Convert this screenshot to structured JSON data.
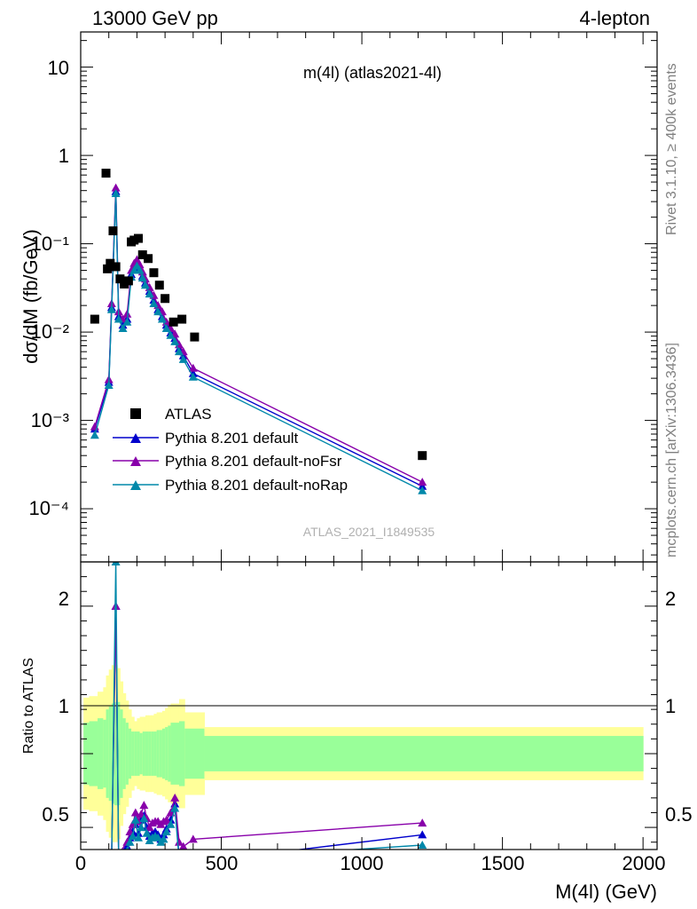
{
  "header": {
    "left": "13000 GeV pp",
    "right": "4-lepton"
  },
  "side_labels": {
    "rivet": "Rivet 3.1.10, ≥ 400k events",
    "mcplots": "mcplots.cern.ch [arXiv:1306.3436]"
  },
  "chart_data": {
    "type": "scatter",
    "title": "m(4l) (atlas2021-4l)",
    "watermark": "ATLAS_2021_I1849535",
    "xlabel": "M(4l) (GeV)",
    "ylabel": "dσ/dM (fb/GeV)",
    "ratio_ylabel": "Ratio to ATLAS",
    "xlim": [
      0,
      2050
    ],
    "ylim": [
      2.5e-05,
      25
    ],
    "yscale": "log",
    "ratio_ylim": [
      0.35,
      2.3
    ],
    "x_ticks": [
      "0",
      "500",
      "1000",
      "1500",
      "2000"
    ],
    "y_ticks": [
      "10⁻⁴",
      "10⁻³",
      "10⁻²",
      "10⁻¹",
      "1",
      "10"
    ],
    "ratio_ticks": [
      "0.5",
      "1",
      "2"
    ],
    "legend_position": "bottom-left",
    "data_series": {
      "name": "ATLAS",
      "color": "#000000",
      "points": [
        [
          50,
          0.014
        ],
        [
          90,
          0.63
        ],
        [
          95,
          0.052
        ],
        [
          105,
          0.06
        ],
        [
          115,
          0.14
        ],
        [
          125,
          0.055
        ],
        [
          140,
          0.04
        ],
        [
          155,
          0.035
        ],
        [
          170,
          0.038
        ],
        [
          180,
          0.105
        ],
        [
          190,
          0.11
        ],
        [
          205,
          0.115
        ],
        [
          220,
          0.075
        ],
        [
          240,
          0.068
        ],
        [
          260,
          0.047
        ],
        [
          280,
          0.034
        ],
        [
          300,
          0.024
        ],
        [
          330,
          0.013
        ],
        [
          360,
          0.014
        ],
        [
          405,
          0.0088
        ],
        [
          1215,
          0.0004
        ]
      ]
    },
    "bands": {
      "inner_color": "#99ff99",
      "outer_color": "#ffff99",
      "edges": [
        10,
        30,
        60,
        80,
        90,
        100,
        110,
        120,
        130,
        140,
        150,
        160,
        170,
        180,
        190,
        200,
        210,
        220,
        230,
        240,
        250,
        260,
        270,
        280,
        290,
        300,
        310,
        320,
        350,
        370,
        440,
        2000
      ],
      "inner_half": [
        0.21,
        0.22,
        0.24,
        0.23,
        0.3,
        0.32,
        0.34,
        0.35,
        0.35,
        0.3,
        0.24,
        0.21,
        0.17,
        0.15,
        0.15,
        0.15,
        0.14,
        0.15,
        0.15,
        0.15,
        0.15,
        0.15,
        0.16,
        0.16,
        0.17,
        0.18,
        0.19,
        0.21,
        0.22,
        0.17,
        0.12
      ],
      "outer_half": [
        0.38,
        0.39,
        0.42,
        0.45,
        0.53,
        0.57,
        0.6,
        0.6,
        0.58,
        0.49,
        0.41,
        0.36,
        0.3,
        0.25,
        0.22,
        0.24,
        0.25,
        0.25,
        0.26,
        0.26,
        0.26,
        0.27,
        0.28,
        0.28,
        0.29,
        0.31,
        0.33,
        0.34,
        0.37,
        0.28,
        0.18
      ]
    },
    "series": [
      {
        "name": "Pythia 8.201 default",
        "color": "#0000cc",
        "points": [
          [
            50,
            0.0008
          ],
          [
            100,
            0.0027
          ],
          [
            110,
            0.019
          ],
          [
            125,
            0.39
          ],
          [
            135,
            0.015
          ],
          [
            150,
            0.012
          ],
          [
            165,
            0.014
          ],
          [
            180,
            0.045
          ],
          [
            190,
            0.054
          ],
          [
            200,
            0.06
          ],
          [
            210,
            0.052
          ],
          [
            220,
            0.043
          ],
          [
            230,
            0.036
          ],
          [
            245,
            0.029
          ],
          [
            260,
            0.023
          ],
          [
            275,
            0.018
          ],
          [
            290,
            0.015
          ],
          [
            305,
            0.012
          ],
          [
            320,
            0.0098
          ],
          [
            335,
            0.0085
          ],
          [
            350,
            0.0065
          ],
          [
            365,
            0.0054
          ],
          [
            400,
            0.0034
          ],
          [
            1215,
            0.00018
          ]
        ],
        "ratio": [
          [
            110,
            0.3
          ],
          [
            125,
            2.0
          ],
          [
            135,
            0.28
          ],
          [
            165,
            0.37
          ],
          [
            175,
            0.43
          ],
          [
            185,
            0.47
          ],
          [
            195,
            0.52
          ],
          [
            205,
            0.46
          ],
          [
            215,
            0.55
          ],
          [
            225,
            0.58
          ],
          [
            235,
            0.5
          ],
          [
            245,
            0.44
          ],
          [
            255,
            0.46
          ],
          [
            265,
            0.47
          ],
          [
            275,
            0.45
          ],
          [
            285,
            0.42
          ],
          [
            295,
            0.45
          ],
          [
            305,
            0.49
          ],
          [
            320,
            0.55
          ],
          [
            335,
            0.66
          ],
          [
            350,
            0.3
          ],
          [
            420,
            0.3
          ],
          [
            650,
            0.32
          ],
          [
            1215,
            0.45
          ]
        ]
      },
      {
        "name": "Pythia 8.201 default-noFsr",
        "color": "#8800aa",
        "points": [
          [
            50,
            0.00085
          ],
          [
            100,
            0.0029
          ],
          [
            110,
            0.021
          ],
          [
            125,
            0.43
          ],
          [
            135,
            0.017
          ],
          [
            150,
            0.014
          ],
          [
            165,
            0.016
          ],
          [
            180,
            0.05
          ],
          [
            190,
            0.06
          ],
          [
            200,
            0.066
          ],
          [
            210,
            0.058
          ],
          [
            220,
            0.048
          ],
          [
            230,
            0.04
          ],
          [
            245,
            0.032
          ],
          [
            260,
            0.026
          ],
          [
            275,
            0.02
          ],
          [
            290,
            0.017
          ],
          [
            305,
            0.013
          ],
          [
            320,
            0.011
          ],
          [
            335,
            0.0095
          ],
          [
            350,
            0.0072
          ],
          [
            365,
            0.006
          ],
          [
            400,
            0.0039
          ],
          [
            1215,
            0.0002
          ]
        ],
        "ratio": [
          [
            110,
            0.33
          ],
          [
            125,
            2.0
          ],
          [
            135,
            0.32
          ],
          [
            165,
            0.4
          ],
          [
            175,
            0.47
          ],
          [
            185,
            0.52
          ],
          [
            195,
            0.6
          ],
          [
            205,
            0.54
          ],
          [
            215,
            0.59
          ],
          [
            225,
            0.65
          ],
          [
            235,
            0.56
          ],
          [
            245,
            0.5
          ],
          [
            255,
            0.53
          ],
          [
            265,
            0.54
          ],
          [
            275,
            0.54
          ],
          [
            285,
            0.52
          ],
          [
            295,
            0.54
          ],
          [
            305,
            0.55
          ],
          [
            320,
            0.6
          ],
          [
            335,
            0.7
          ],
          [
            350,
            0.4
          ],
          [
            365,
            0.37
          ],
          [
            400,
            0.42
          ],
          [
            1215,
            0.53
          ]
        ]
      },
      {
        "name": "Pythia 8.201 default-noRap",
        "color": "#0088aa",
        "points": [
          [
            50,
            0.00068
          ],
          [
            100,
            0.0025
          ],
          [
            110,
            0.018
          ],
          [
            125,
            0.37
          ],
          [
            135,
            0.014
          ],
          [
            150,
            0.011
          ],
          [
            165,
            0.013
          ],
          [
            180,
            0.042
          ],
          [
            190,
            0.05
          ],
          [
            200,
            0.056
          ],
          [
            210,
            0.05
          ],
          [
            220,
            0.041
          ],
          [
            230,
            0.034
          ],
          [
            245,
            0.027
          ],
          [
            260,
            0.021
          ],
          [
            275,
            0.017
          ],
          [
            290,
            0.014
          ],
          [
            305,
            0.011
          ],
          [
            320,
            0.0092
          ],
          [
            335,
            0.0078
          ],
          [
            350,
            0.006
          ],
          [
            365,
            0.0049
          ],
          [
            400,
            0.0031
          ],
          [
            1215,
            0.00016
          ]
        ],
        "ratio": [
          [
            110,
            0.28
          ],
          [
            125,
            2.3
          ],
          [
            135,
            0.26
          ],
          [
            165,
            0.34
          ],
          [
            175,
            0.4
          ],
          [
            185,
            0.44
          ],
          [
            195,
            0.55
          ],
          [
            205,
            0.43
          ],
          [
            215,
            0.5
          ],
          [
            225,
            0.56
          ],
          [
            235,
            0.46
          ],
          [
            245,
            0.41
          ],
          [
            255,
            0.43
          ],
          [
            265,
            0.44
          ],
          [
            275,
            0.43
          ],
          [
            285,
            0.4
          ],
          [
            295,
            0.42
          ],
          [
            305,
            0.47
          ],
          [
            320,
            0.52
          ],
          [
            335,
            0.63
          ],
          [
            350,
            0.28
          ],
          [
            365,
            0.25
          ],
          [
            420,
            0.28
          ],
          [
            1215,
            0.38
          ]
        ]
      }
    ]
  }
}
